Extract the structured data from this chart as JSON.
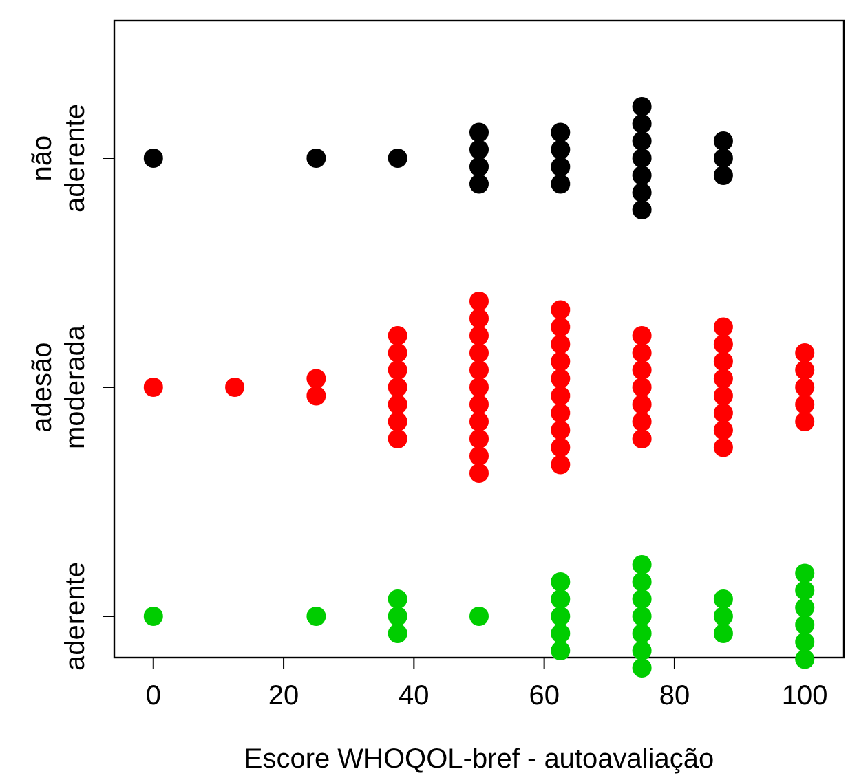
{
  "chart_data": {
    "type": "scatter",
    "orientation": "horizontal",
    "xlabel": "Escore WHOQOL-bref - autoavaliação",
    "xlim": [
      -6,
      106
    ],
    "xticks": [
      0,
      20,
      40,
      60,
      80,
      100
    ],
    "categories": [
      "não\naderente",
      "adesão\nmoderada",
      "aderente"
    ],
    "marker": "circle",
    "series": [
      {
        "color": "#000000",
        "x": [
          "não\naderente",
          "não\naderente",
          "não\naderente",
          "não\naderente",
          "não\naderente",
          "não\naderente",
          "não\naderente",
          "não\naderente",
          "não\naderente",
          "não\naderente",
          "não\naderente",
          "não\naderente",
          "não\naderente",
          "não\naderente",
          "não\naderente",
          "não\naderente",
          "não\naderente",
          "não\naderente",
          "não\naderente",
          "não\naderente",
          "não\naderente"
        ],
        "values": [
          0,
          25,
          37.5,
          50,
          50,
          50,
          50,
          62.5,
          62.5,
          62.5,
          62.5,
          75,
          75,
          75,
          75,
          75,
          75,
          75,
          87.5,
          87.5,
          87.5
        ]
      },
      {
        "color": "#ff0000",
        "x": [
          "adesão\nmoderada",
          "adesão\nmoderada",
          "adesão\nmoderada",
          "adesão\nmoderada",
          "adesão\nmoderada",
          "adesão\nmoderada",
          "adesão\nmoderada",
          "adesão\nmoderada",
          "adesão\nmoderada",
          "adesão\nmoderada",
          "adesão\nmoderada",
          "adesão\nmoderada",
          "adesão\nmoderada",
          "adesão\nmoderada",
          "adesão\nmoderada",
          "adesão\nmoderada",
          "adesão\nmoderada",
          "adesão\nmoderada",
          "adesão\nmoderada",
          "adesão\nmoderada",
          "adesão\nmoderada",
          "adesão\nmoderada",
          "adesão\nmoderada",
          "adesão\nmoderada",
          "adesão\nmoderada",
          "adesão\nmoderada",
          "adesão\nmoderada",
          "adesão\nmoderada",
          "adesão\nmoderada",
          "adesão\nmoderada",
          "adesão\nmoderada",
          "adesão\nmoderada",
          "adesão\nmoderada",
          "adesão\nmoderada",
          "adesão\nmoderada",
          "adesão\nmoderada",
          "adesão\nmoderada",
          "adesão\nmoderada",
          "adesão\nmoderada",
          "adesão\nmoderada",
          "adesão\nmoderada",
          "adesão\nmoderada",
          "adesão\nmoderada",
          "adesão\nmoderada",
          "adesão\nmoderada",
          "adesão\nmoderada",
          "adesão\nmoderada",
          "adesão\nmoderada",
          "adesão\nmoderada",
          "adesão\nmoderada",
          "adesão\nmoderada",
          "adesão\nmoderada"
        ],
        "values": [
          0,
          12.5,
          25,
          25,
          37.5,
          37.5,
          37.5,
          37.5,
          37.5,
          37.5,
          37.5,
          50,
          50,
          50,
          50,
          50,
          50,
          50,
          50,
          50,
          50,
          50,
          62.5,
          62.5,
          62.5,
          62.5,
          62.5,
          62.5,
          62.5,
          62.5,
          62.5,
          62.5,
          75,
          75,
          75,
          75,
          75,
          75,
          75,
          87.5,
          87.5,
          87.5,
          87.5,
          87.5,
          87.5,
          87.5,
          87.5,
          100,
          100,
          100,
          100,
          100
        ]
      },
      {
        "color": "#00cd00",
        "x": [
          "aderente",
          "aderente",
          "aderente",
          "aderente",
          "aderente",
          "aderente",
          "aderente",
          "aderente",
          "aderente",
          "aderente",
          "aderente",
          "aderente",
          "aderente",
          "aderente",
          "aderente",
          "aderente",
          "aderente",
          "aderente",
          "aderente",
          "aderente",
          "aderente",
          "aderente",
          "aderente",
          "aderente",
          "aderente",
          "aderente",
          "aderente"
        ],
        "values": [
          0,
          25,
          37.5,
          37.5,
          37.5,
          50,
          62.5,
          62.5,
          62.5,
          62.5,
          62.5,
          75,
          75,
          75,
          75,
          75,
          75,
          75,
          87.5,
          87.5,
          87.5,
          100,
          100,
          100,
          100,
          100,
          100
        ]
      }
    ]
  }
}
